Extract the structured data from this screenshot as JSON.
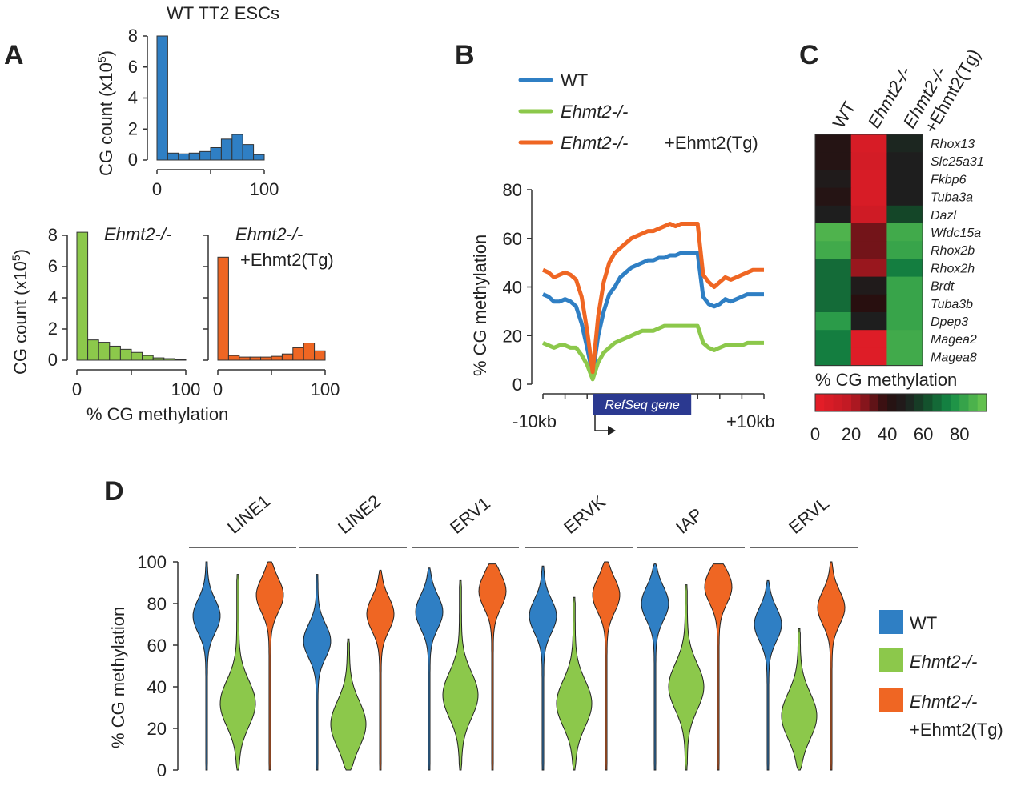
{
  "colors": {
    "wt": "#2f7fc4",
    "ko": "#8cc84b",
    "tg": "#ef6623",
    "navy": "#2b3990",
    "axis": "#333333"
  },
  "panels": {
    "a": "A",
    "b": "B",
    "c": "C",
    "d": "D"
  },
  "panel_a": {
    "wt_title": "WT TT2 ESCs",
    "ylabel_main": "CG count (x10",
    "ylabel_exp": "5",
    "ylabel_close": ")",
    "ko_label": "Ehmt2-/-",
    "tg_label_line1": "Ehmt2-/-",
    "tg_label_line2": "+Ehmt2(Tg)",
    "xlabel": "% CG methylation"
  },
  "panel_b": {
    "legend": [
      {
        "label": "WT",
        "italic": false
      },
      {
        "label": "Ehmt2-/-",
        "italic": true
      },
      {
        "label": "Ehmt2-/-",
        "italic": true,
        "suffix": "+Ehmt2(Tg)"
      }
    ],
    "ylabel": "% CG methylation",
    "gene_label": "RefSeq gene",
    "x_left": "-10kb",
    "x_right": "+10kb"
  },
  "panel_c": {
    "colorbar_label": "% CG methylation"
  },
  "panel_d": {
    "ylabel": "% CG methylation",
    "legend": [
      {
        "label": "WT"
      },
      {
        "label": "Ehmt2-/-"
      },
      {
        "label": "Ehmt2-/-",
        "line2": "+Ehmt2(Tg)"
      }
    ]
  },
  "chart_data": [
    {
      "type": "bar",
      "id": "hist_wt",
      "title": "WT TT2 ESCs",
      "xlabel": "",
      "ylabel": "CG count (x10^5)",
      "bin_edges": [
        0,
        10,
        20,
        30,
        40,
        50,
        60,
        70,
        80,
        90,
        100
      ],
      "values": [
        8.0,
        0.45,
        0.4,
        0.45,
        0.55,
        0.8,
        1.35,
        1.65,
        1.0,
        0.35
      ],
      "ylim": [
        0,
        8
      ],
      "yticks": [
        0,
        2,
        4,
        6,
        8
      ],
      "xticks": [
        0,
        100
      ]
    },
    {
      "type": "bar",
      "id": "hist_ko",
      "title": "Ehmt2-/-",
      "xlabel": "% CG methylation",
      "ylabel": "CG count (x10^5)",
      "bin_edges": [
        0,
        10,
        20,
        30,
        40,
        50,
        60,
        70,
        80,
        90,
        100
      ],
      "values": [
        8.2,
        1.3,
        1.15,
        0.9,
        0.7,
        0.5,
        0.3,
        0.15,
        0.1,
        0.05
      ],
      "ylim": [
        0,
        8
      ],
      "yticks": [
        0,
        2,
        4,
        6,
        8
      ],
      "xticks": [
        0,
        100
      ]
    },
    {
      "type": "bar",
      "id": "hist_tg",
      "title": "Ehmt2-/- +Ehmt2(Tg)",
      "xlabel": "% CG methylation",
      "ylabel": "",
      "bin_edges": [
        0,
        10,
        20,
        30,
        40,
        50,
        60,
        70,
        80,
        90,
        100
      ],
      "values": [
        6.6,
        0.3,
        0.2,
        0.2,
        0.2,
        0.25,
        0.4,
        0.8,
        1.1,
        0.6
      ],
      "ylim": [
        0,
        8
      ],
      "xticks": [
        0,
        100
      ]
    },
    {
      "type": "line",
      "id": "metaplot",
      "ylabel": "% CG methylation",
      "ylim": [
        0,
        80
      ],
      "yticks": [
        0,
        20,
        40,
        60,
        80
      ],
      "xticks": [
        "-10kb",
        "+10kb"
      ],
      "x": [
        0,
        1,
        2,
        3,
        4,
        5,
        6,
        7,
        8,
        9,
        10,
        11,
        12,
        13,
        14,
        15,
        16,
        17,
        18,
        19,
        20,
        21,
        22,
        23,
        24,
        25,
        26,
        27,
        28,
        29,
        30,
        31,
        32,
        33,
        34,
        35,
        36,
        37,
        38,
        39,
        40
      ],
      "series": [
        {
          "name": "WT",
          "values": [
            37,
            36,
            34,
            34,
            35,
            34,
            32,
            25,
            15,
            4,
            20,
            30,
            37,
            40,
            44,
            46,
            48,
            49,
            50,
            51,
            51,
            52,
            52,
            53,
            53,
            54,
            54,
            54,
            54,
            36,
            33,
            32,
            33,
            35,
            34,
            35,
            36,
            37,
            37,
            37,
            37
          ]
        },
        {
          "name": "Ehmt2-/-",
          "values": [
            17,
            16,
            15,
            16,
            16,
            15,
            15,
            12,
            8,
            2,
            9,
            13,
            15,
            17,
            18,
            19,
            20,
            21,
            22,
            22,
            22,
            23,
            24,
            24,
            24,
            24,
            24,
            24,
            24,
            17,
            15,
            14,
            15,
            16,
            16,
            16,
            16,
            17,
            17,
            17,
            17
          ]
        },
        {
          "name": "Ehmt2-/- +Ehmt2(Tg)",
          "values": [
            47,
            46,
            44,
            45,
            46,
            45,
            43,
            36,
            22,
            5,
            28,
            42,
            50,
            54,
            56,
            58,
            60,
            61,
            62,
            63,
            63,
            64,
            65,
            66,
            65,
            66,
            66,
            66,
            66,
            45,
            42,
            40,
            42,
            44,
            43,
            44,
            45,
            46,
            47,
            47,
            47
          ]
        }
      ],
      "gene_region": {
        "start": 10,
        "end": 28
      }
    },
    {
      "type": "heatmap",
      "id": "heatmap",
      "columns": [
        "WT",
        "Ehmt2-/-",
        "Ehmt2-/-\n+Ehmt2(Tg)"
      ],
      "rows": [
        "Rhox13",
        "Slc25a31",
        "Fkbp6",
        "Tuba3a",
        "Dazl",
        "Wfdc15a",
        "Rhox2b",
        "Rhox2h",
        "Brdt",
        "Tuba3b",
        "Dpep3",
        "Magea2",
        "Magea8"
      ],
      "values": [
        [
          43,
          8,
          52
        ],
        [
          43,
          10,
          50
        ],
        [
          48,
          8,
          50
        ],
        [
          43,
          8,
          50
        ],
        [
          50,
          12,
          60
        ],
        [
          88,
          30,
          85
        ],
        [
          85,
          30,
          83
        ],
        [
          68,
          25,
          72
        ],
        [
          68,
          48,
          83
        ],
        [
          68,
          40,
          83
        ],
        [
          80,
          50,
          83
        ],
        [
          72,
          5,
          85
        ],
        [
          72,
          5,
          85
        ]
      ],
      "colorbar": {
        "label": "% CG methylation",
        "ticks": [
          0,
          20,
          40,
          60,
          80
        ],
        "range": [
          0,
          95
        ]
      }
    },
    {
      "type": "violin",
      "id": "violins",
      "ylabel": "% CG methylation",
      "ylim": [
        0,
        100
      ],
      "yticks": [
        0,
        20,
        40,
        60,
        80,
        100
      ],
      "categories": [
        "LINE1",
        "LINE2",
        "ERV1",
        "ERVK",
        "IAP",
        "ERVL"
      ],
      "series_names": [
        "WT",
        "Ehmt2-/-",
        "Ehmt2-/- +Ehmt2(Tg)"
      ],
      "series": [
        {
          "name": "WT",
          "medians": [
            74,
            62,
            76,
            74,
            80,
            70
          ],
          "ranges": [
            [
              0,
              100
            ],
            [
              0,
              94
            ],
            [
              0,
              97
            ],
            [
              0,
              98
            ],
            [
              0,
              99
            ],
            [
              0,
              91
            ]
          ]
        },
        {
          "name": "Ehmt2-/-",
          "medians": [
            32,
            22,
            36,
            32,
            40,
            26
          ],
          "ranges": [
            [
              0,
              94
            ],
            [
              0,
              63
            ],
            [
              0,
              91
            ],
            [
              0,
              83
            ],
            [
              0,
              89
            ],
            [
              0,
              68
            ]
          ]
        },
        {
          "name": "Ehmt2-/- +Ehmt2(Tg)",
          "medians": [
            84,
            75,
            86,
            84,
            88,
            78
          ],
          "ranges": [
            [
              0,
              100
            ],
            [
              0,
              96
            ],
            [
              0,
              99
            ],
            [
              0,
              100
            ],
            [
              0,
              99
            ],
            [
              0,
              100
            ]
          ]
        }
      ]
    }
  ]
}
